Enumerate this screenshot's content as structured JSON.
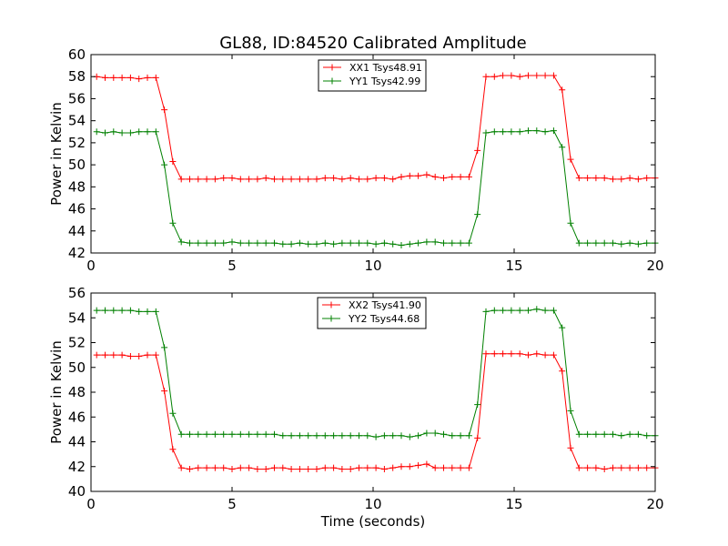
{
  "title": "GL88, ID:84520 Calibrated Amplitude",
  "colors": {
    "xx": "#ff0000",
    "yy": "#008000"
  },
  "chart_data": [
    {
      "type": "line",
      "title": "GL88, ID:84520 Calibrated Amplitude",
      "xlabel": "",
      "ylabel": "Power in Kelvin",
      "xlim": [
        0,
        20
      ],
      "ylim": [
        42,
        60
      ],
      "xticks": [
        0,
        5,
        10,
        15,
        20
      ],
      "yticks": [
        42,
        44,
        46,
        48,
        50,
        52,
        54,
        56,
        58,
        60
      ],
      "grid": false,
      "legend": "top-center",
      "x": [
        0.2,
        0.5,
        0.8,
        1.1,
        1.4,
        1.7,
        2.0,
        2.3,
        2.6,
        2.9,
        3.2,
        3.5,
        3.8,
        4.1,
        4.4,
        4.7,
        5.0,
        5.3,
        5.6,
        5.9,
        6.2,
        6.5,
        6.8,
        7.1,
        7.4,
        7.7,
        8.0,
        8.3,
        8.6,
        8.9,
        9.2,
        9.5,
        9.8,
        10.1,
        10.4,
        10.7,
        11.0,
        11.3,
        11.6,
        11.9,
        12.2,
        12.5,
        12.8,
        13.1,
        13.4,
        13.7,
        14.0,
        14.3,
        14.6,
        14.9,
        15.2,
        15.5,
        15.8,
        16.1,
        16.4,
        16.7,
        17.0,
        17.3,
        17.6,
        17.9,
        18.2,
        18.5,
        18.8,
        19.1,
        19.4,
        19.7,
        20.0
      ],
      "series": [
        {
          "name": "XX1 Tsys48.91",
          "color": "#ff0000",
          "values": [
            58.0,
            57.9,
            57.9,
            57.9,
            57.9,
            57.8,
            57.9,
            57.9,
            55.0,
            50.3,
            48.7,
            48.7,
            48.7,
            48.7,
            48.7,
            48.8,
            48.8,
            48.7,
            48.7,
            48.7,
            48.8,
            48.7,
            48.7,
            48.7,
            48.7,
            48.7,
            48.7,
            48.8,
            48.8,
            48.7,
            48.8,
            48.7,
            48.7,
            48.8,
            48.8,
            48.7,
            48.9,
            49.0,
            49.0,
            49.1,
            48.9,
            48.8,
            48.9,
            48.9,
            48.9,
            51.3,
            58.0,
            58.0,
            58.1,
            58.1,
            58.0,
            58.1,
            58.1,
            58.1,
            58.1,
            56.8,
            50.5,
            48.8,
            48.8,
            48.8,
            48.8,
            48.7,
            48.7,
            48.8,
            48.7,
            48.8,
            48.8
          ]
        },
        {
          "name": "YY1 Tsys42.99",
          "color": "#008000",
          "values": [
            53.0,
            52.9,
            53.0,
            52.9,
            52.9,
            53.0,
            53.0,
            53.0,
            50.0,
            44.7,
            43.0,
            42.9,
            42.9,
            42.9,
            42.9,
            42.9,
            43.0,
            42.9,
            42.9,
            42.9,
            42.9,
            42.9,
            42.8,
            42.8,
            42.9,
            42.8,
            42.8,
            42.9,
            42.8,
            42.9,
            42.9,
            42.9,
            42.9,
            42.8,
            42.9,
            42.8,
            42.7,
            42.8,
            42.9,
            43.0,
            43.0,
            42.9,
            42.9,
            42.9,
            42.9,
            45.5,
            52.9,
            53.0,
            53.0,
            53.0,
            53.0,
            53.1,
            53.1,
            53.0,
            53.1,
            51.6,
            44.7,
            42.9,
            42.9,
            42.9,
            42.9,
            42.9,
            42.8,
            42.9,
            42.8,
            42.9,
            42.9
          ]
        }
      ]
    },
    {
      "type": "line",
      "title": "",
      "xlabel": "Time (seconds)",
      "ylabel": "Power in Kelvin",
      "xlim": [
        0,
        20
      ],
      "ylim": [
        40,
        56
      ],
      "xticks": [
        0,
        5,
        10,
        15,
        20
      ],
      "yticks": [
        40,
        42,
        44,
        46,
        48,
        50,
        52,
        54,
        56
      ],
      "grid": false,
      "legend": "top-center",
      "x": [
        0.2,
        0.5,
        0.8,
        1.1,
        1.4,
        1.7,
        2.0,
        2.3,
        2.6,
        2.9,
        3.2,
        3.5,
        3.8,
        4.1,
        4.4,
        4.7,
        5.0,
        5.3,
        5.6,
        5.9,
        6.2,
        6.5,
        6.8,
        7.1,
        7.4,
        7.7,
        8.0,
        8.3,
        8.6,
        8.9,
        9.2,
        9.5,
        9.8,
        10.1,
        10.4,
        10.7,
        11.0,
        11.3,
        11.6,
        11.9,
        12.2,
        12.5,
        12.8,
        13.1,
        13.4,
        13.7,
        14.0,
        14.3,
        14.6,
        14.9,
        15.2,
        15.5,
        15.8,
        16.1,
        16.4,
        16.7,
        17.0,
        17.3,
        17.6,
        17.9,
        18.2,
        18.5,
        18.8,
        19.1,
        19.4,
        19.7,
        20.0
      ],
      "series": [
        {
          "name": "XX2 Tsys41.90",
          "color": "#ff0000",
          "values": [
            51.0,
            51.0,
            51.0,
            51.0,
            50.9,
            50.9,
            51.0,
            51.0,
            48.1,
            43.4,
            41.9,
            41.8,
            41.9,
            41.9,
            41.9,
            41.9,
            41.8,
            41.9,
            41.9,
            41.8,
            41.8,
            41.9,
            41.9,
            41.8,
            41.8,
            41.8,
            41.8,
            41.9,
            41.9,
            41.8,
            41.8,
            41.9,
            41.9,
            41.9,
            41.8,
            41.9,
            42.0,
            42.0,
            42.1,
            42.2,
            41.9,
            41.9,
            41.9,
            41.9,
            41.9,
            44.3,
            51.1,
            51.1,
            51.1,
            51.1,
            51.1,
            51.0,
            51.1,
            51.0,
            51.0,
            49.7,
            43.5,
            41.9,
            41.9,
            41.9,
            41.8,
            41.9,
            41.9,
            41.9,
            41.9,
            41.9,
            41.9
          ]
        },
        {
          "name": "YY2 Tsys44.68",
          "color": "#008000",
          "values": [
            54.6,
            54.6,
            54.6,
            54.6,
            54.6,
            54.5,
            54.5,
            54.5,
            51.6,
            46.3,
            44.6,
            44.6,
            44.6,
            44.6,
            44.6,
            44.6,
            44.6,
            44.6,
            44.6,
            44.6,
            44.6,
            44.6,
            44.5,
            44.5,
            44.5,
            44.5,
            44.5,
            44.5,
            44.5,
            44.5,
            44.5,
            44.5,
            44.5,
            44.4,
            44.5,
            44.5,
            44.5,
            44.4,
            44.5,
            44.7,
            44.7,
            44.6,
            44.5,
            44.5,
            44.5,
            47.0,
            54.5,
            54.6,
            54.6,
            54.6,
            54.6,
            54.6,
            54.7,
            54.6,
            54.6,
            53.2,
            46.5,
            44.6,
            44.6,
            44.6,
            44.6,
            44.6,
            44.5,
            44.6,
            44.6,
            44.5,
            44.5
          ]
        }
      ]
    }
  ]
}
